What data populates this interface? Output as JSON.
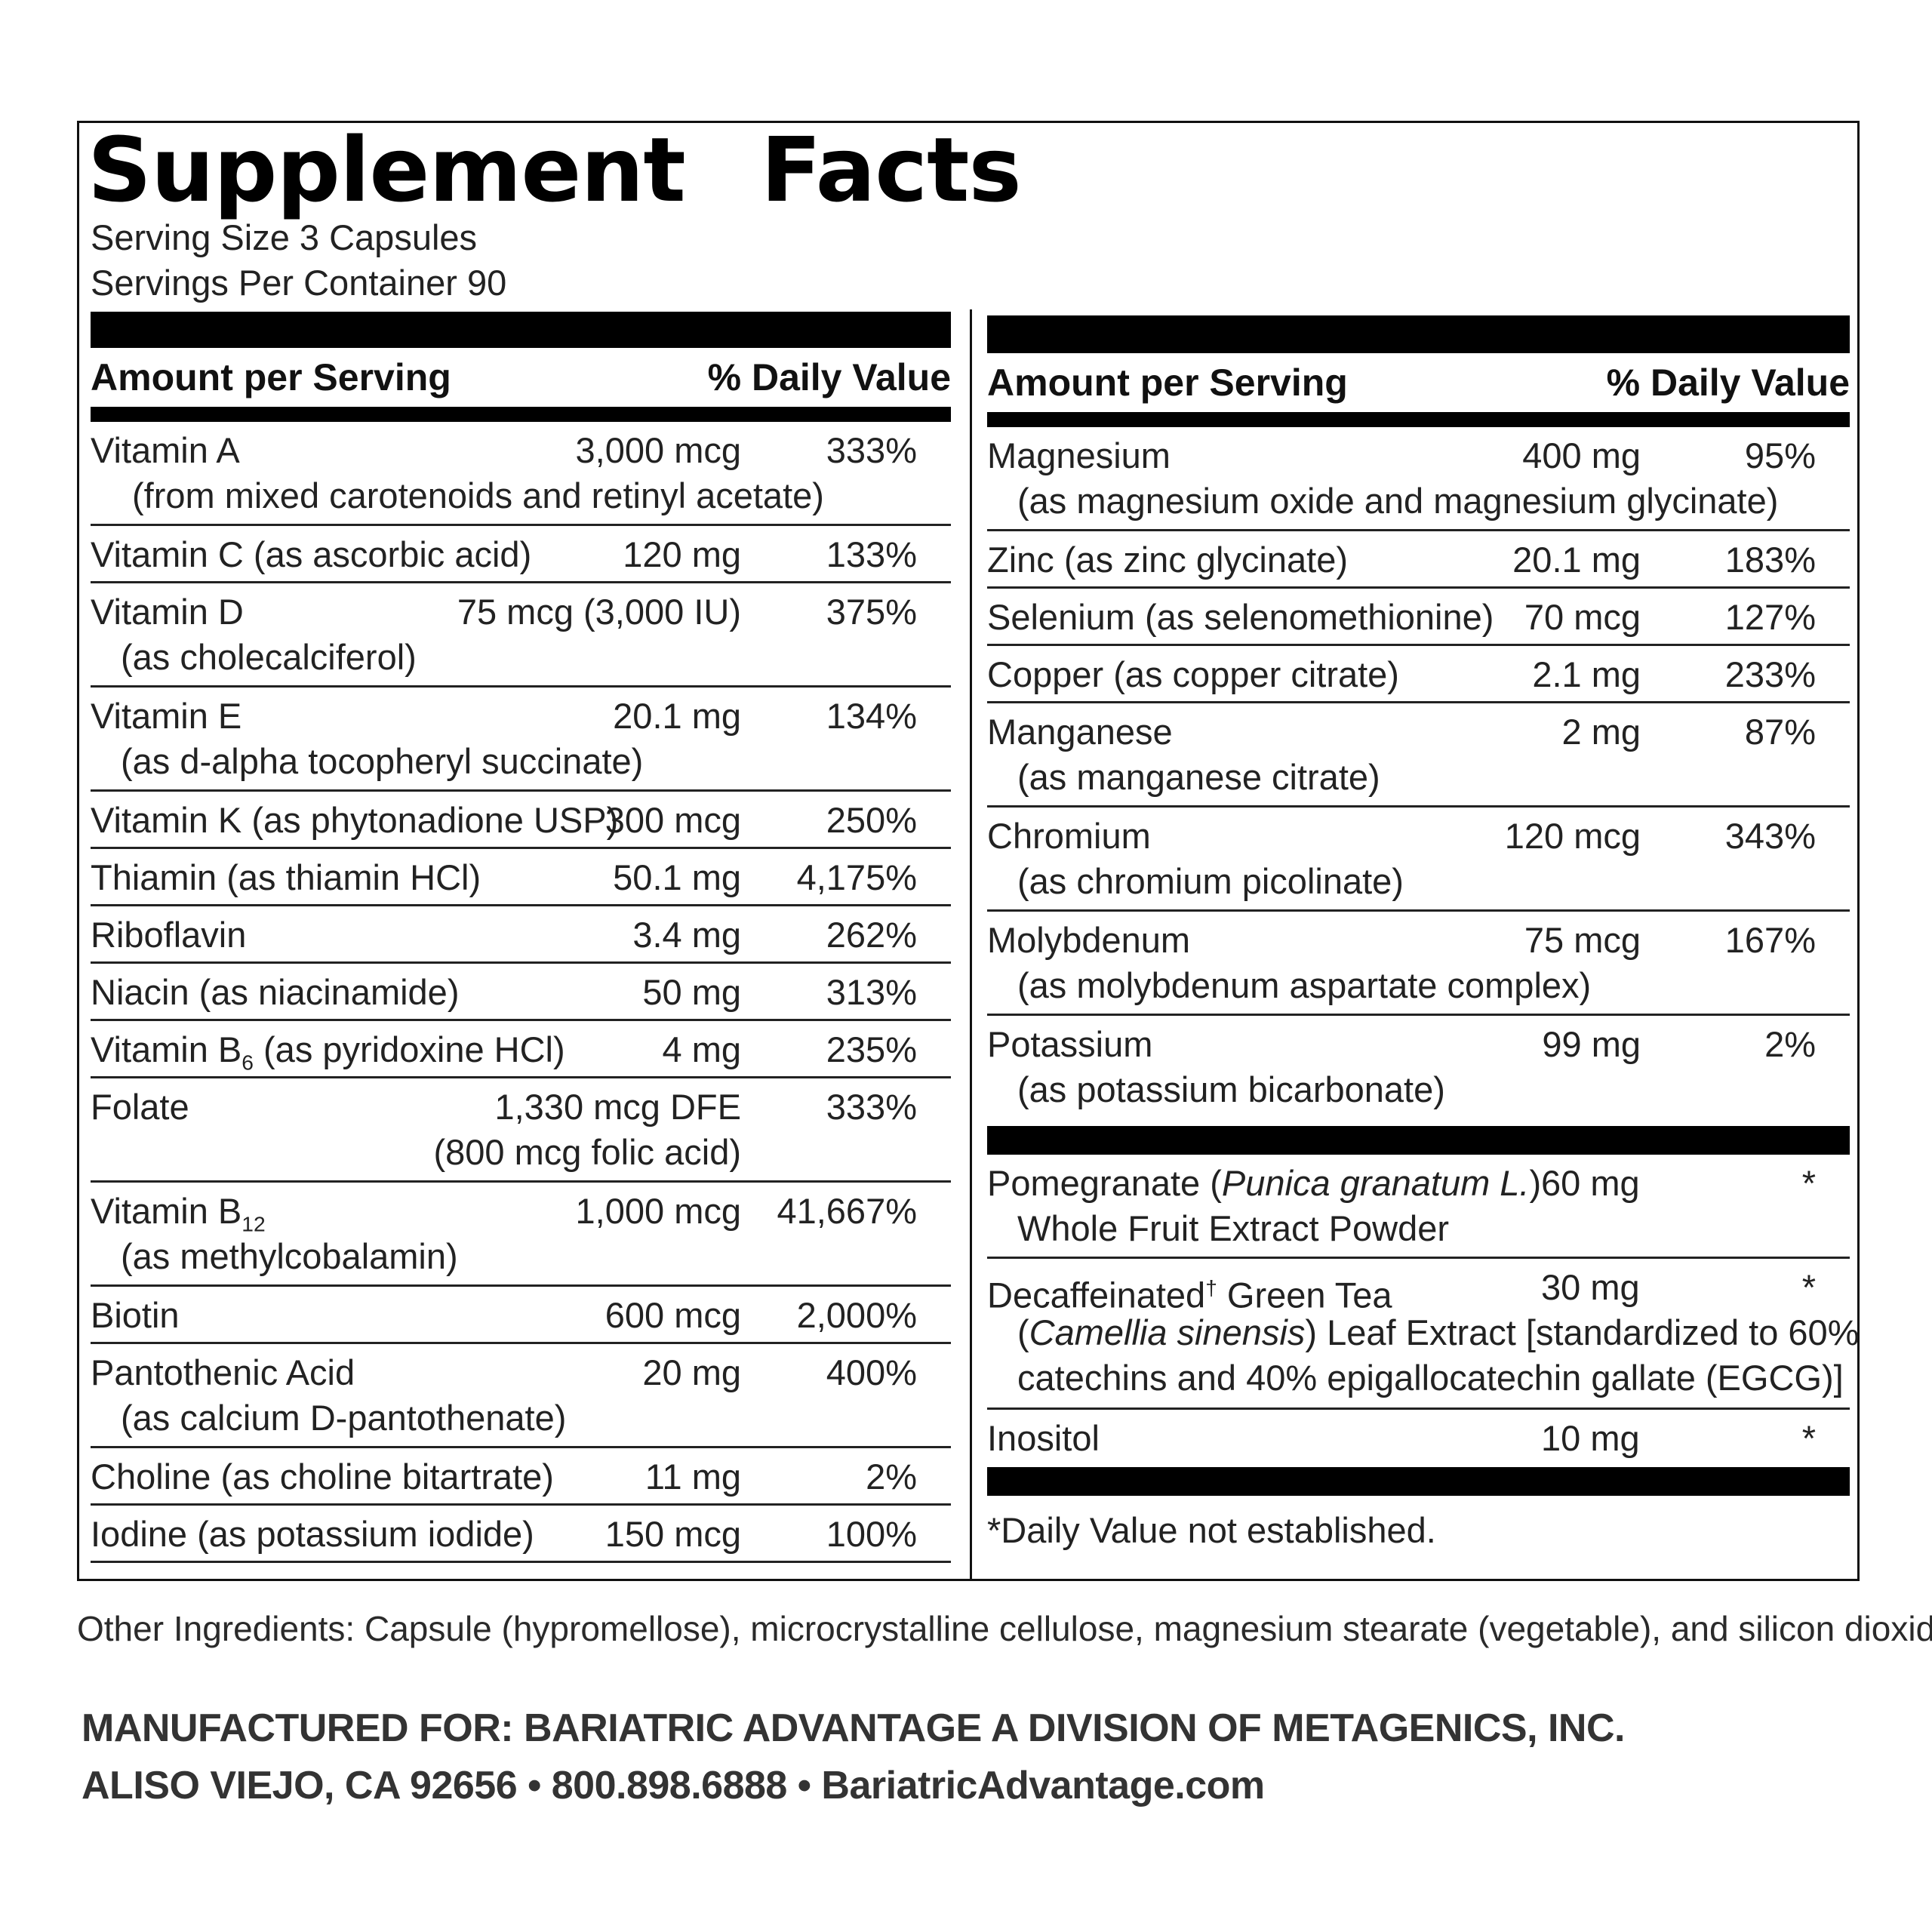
{
  "title": "Supplement Facts",
  "serving_size": "Serving Size 3 Capsules",
  "servings_per_container": "Servings Per Container 90",
  "headers": {
    "amount": "Amount per Serving",
    "dv": "% Daily Value"
  },
  "left": [
    {
      "name": "Vitamin A",
      "amount": "3,000 mcg",
      "dv": "333%",
      "sub": "(from mixed carotenoids and retinyl acetate)"
    },
    {
      "name": "Vitamin C (as ascorbic acid)",
      "amount": "120 mg",
      "dv": "133%"
    },
    {
      "name": "Vitamin D",
      "amount": "75 mcg (3,000 IU)",
      "dv": "375%",
      "sub": "(as cholecalciferol)"
    },
    {
      "name": "Vitamin E",
      "amount": "20.1 mg",
      "dv": "134%",
      "sub": "(as d-alpha tocopheryl succinate)"
    },
    {
      "name": "Vitamin K (as phytonadione USP)",
      "amount": "300 mcg",
      "dv": "250%"
    },
    {
      "name": "Thiamin (as thiamin HCl)",
      "amount": "50.1 mg",
      "dv": "4,175%"
    },
    {
      "name": "Riboflavin",
      "amount": "3.4 mg",
      "dv": "262%"
    },
    {
      "name": "Niacin (as niacinamide)",
      "amount": "50 mg",
      "dv": "313%"
    },
    {
      "name_a": "Vitamin B",
      "name_sub": "6",
      "name_b": " (as pyridoxine HCl)",
      "amount": "4 mg",
      "dv": "235%"
    },
    {
      "name": "Folate",
      "amount": "1,330 mcg DFE",
      "dv": "333%",
      "sub": "(800 mcg folic acid)"
    },
    {
      "name_a": "Vitamin B",
      "name_sub": "12",
      "amount": "1,000 mcg",
      "dv": "41,667%",
      "sub": "(as methylcobalamin)"
    },
    {
      "name": "Biotin",
      "amount": "600 mcg",
      "dv": "2,000%"
    },
    {
      "name": "Pantothenic Acid",
      "amount": "20 mg",
      "dv": "400%",
      "sub": "(as calcium D-pantothenate)"
    },
    {
      "name": "Choline (as choline bitartrate)",
      "amount": "11 mg",
      "dv": "2%"
    },
    {
      "name": "Iodine (as potassium iodide)",
      "amount": "150 mcg",
      "dv": "100%"
    }
  ],
  "right": [
    {
      "name": "Magnesium",
      "amount": "400 mg",
      "dv": "95%",
      "sub": "(as magnesium oxide and magnesium glycinate)"
    },
    {
      "name": "Zinc (as zinc glycinate)",
      "amount": "20.1 mg",
      "dv": "183%"
    },
    {
      "name": "Selenium (as selenomethionine)",
      "amount": "70 mcg",
      "dv": "127%"
    },
    {
      "name": "Copper (as copper citrate)",
      "amount": "2.1 mg",
      "dv": "233%"
    },
    {
      "name": "Manganese",
      "amount": "2 mg",
      "dv": "87%",
      "sub": "(as manganese citrate)"
    },
    {
      "name": "Chromium",
      "amount": "120 mcg",
      "dv": "343%",
      "sub": "(as chromium picolinate)"
    },
    {
      "name": "Molybdenum",
      "amount": "75 mcg",
      "dv": "167%",
      "sub": "(as molybdenum aspartate complex)"
    },
    {
      "name": "Potassium",
      "amount": "99 mg",
      "dv": "2%",
      "sub": "(as potassium bicarbonate)"
    }
  ],
  "botanicals": [
    {
      "name_a": "Pomegranate (",
      "name_italic": "Punica granatum L.",
      "name_b": ")",
      "amount": "60 mg",
      "dv": "*",
      "sub": "Whole Fruit Extract Powder"
    },
    {
      "name_a": "Decaffeinated",
      "name_sup": "†",
      "name_b": " Green Tea",
      "amount": "30 mg",
      "dv": "*",
      "sub1_a": "(",
      "sub1_italic": "Camellia sinensis",
      "sub1_b": ") Leaf Extract [standardized to 60%",
      "sub2": "catechins and 40% epigallocatechin gallate (EGCG)]"
    },
    {
      "name": "Inositol",
      "amount": "10 mg",
      "dv": "*"
    }
  ],
  "footnote": "*Daily Value not established.",
  "other_ingredients": "Other Ingredients: Capsule (hypromellose), microcrystalline cellulose, magnesium stearate (vegetable), and silicon dioxide.",
  "manufacturer_line1": "MANUFACTURED FOR: BARIATRIC ADVANTAGE A DIVISION OF METAGENICS, INC.",
  "manufacturer_line2": "ALISO VIEJO, CA 92656 • 800.898.6888 • BariatricAdvantage.com"
}
